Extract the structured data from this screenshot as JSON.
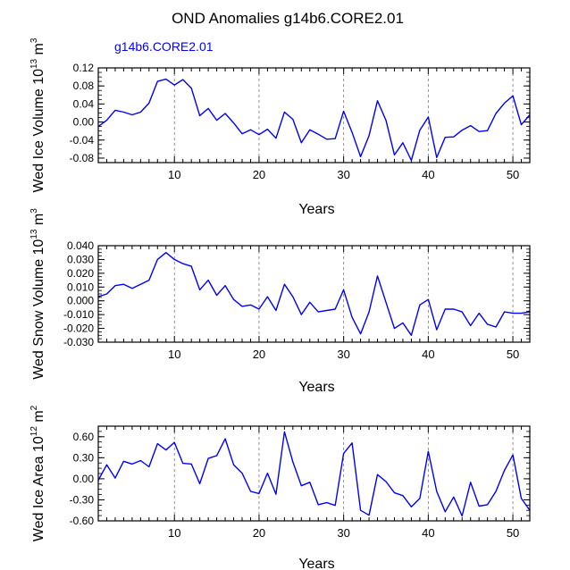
{
  "chart_data": {
    "type": "line",
    "title": "OND Anomalies g14b6.CORE2.01",
    "series_label": "g14b6.CORE2.01",
    "line_color": "#0000ff",
    "x": [
      1,
      2,
      3,
      4,
      5,
      6,
      7,
      8,
      9,
      10,
      11,
      12,
      13,
      14,
      15,
      16,
      17,
      18,
      19,
      20,
      21,
      22,
      23,
      24,
      25,
      26,
      27,
      28,
      29,
      30,
      31,
      32,
      33,
      34,
      35,
      36,
      37,
      38,
      39,
      40,
      41,
      42,
      43,
      44,
      45,
      46,
      47,
      48,
      49,
      50,
      51,
      52
    ],
    "xlim": [
      1,
      52
    ],
    "xticks": [
      10,
      20,
      30,
      40,
      50
    ],
    "xtick_labels": [
      "10",
      "20",
      "30",
      "40",
      "50"
    ],
    "grid_x": [
      10,
      20,
      30,
      40,
      50
    ],
    "panels": [
      {
        "xlabel": "Years",
        "ylabel_main": "Wed Ice Volume 10",
        "ylabel_exp": "13",
        "ylabel_unit": " m",
        "ylabel_unit_exp": "3",
        "ylim": [
          -0.09,
          0.12
        ],
        "yticks": [
          0.12,
          0.08,
          0.04,
          0.0,
          -0.04,
          -0.08
        ],
        "ytick_labels": [
          "0.12",
          "0.08",
          "0.04",
          "0.00",
          "-0.04",
          "-0.08"
        ],
        "values": [
          -0.01,
          0.004,
          0.026,
          0.022,
          0.016,
          0.022,
          0.042,
          0.09,
          0.095,
          0.082,
          0.094,
          0.075,
          0.014,
          0.03,
          0.004,
          0.019,
          -0.002,
          -0.026,
          -0.017,
          -0.028,
          -0.016,
          -0.036,
          0.022,
          0.006,
          -0.046,
          -0.017,
          -0.027,
          -0.038,
          -0.037,
          0.024,
          -0.023,
          -0.077,
          -0.03,
          0.047,
          0.004,
          -0.073,
          -0.046,
          -0.085,
          -0.018,
          0.011,
          -0.079,
          -0.034,
          -0.033,
          -0.018,
          -0.008,
          -0.021,
          -0.019,
          0.019,
          0.042,
          0.058,
          -0.006,
          0.016
        ]
      },
      {
        "xlabel": "Years",
        "ylabel_main": "Wed Snow Volume 10",
        "ylabel_exp": "13",
        "ylabel_unit": " m",
        "ylabel_unit_exp": "3",
        "ylim": [
          -0.03,
          0.04
        ],
        "yticks": [
          0.04,
          0.03,
          0.02,
          0.01,
          0.0,
          -0.01,
          -0.02,
          -0.03
        ],
        "ytick_labels": [
          "0.040",
          "0.030",
          "0.020",
          "0.010",
          "0.000",
          "-0.010",
          "-0.020",
          "-0.030"
        ],
        "values": [
          0.003,
          0.005,
          0.011,
          0.012,
          0.009,
          0.012,
          0.015,
          0.03,
          0.035,
          0.03,
          0.027,
          0.025,
          0.008,
          0.015,
          0.004,
          0.011,
          0.001,
          -0.004,
          -0.003,
          -0.006,
          0.003,
          -0.007,
          0.012,
          0.003,
          -0.01,
          -0.001,
          -0.008,
          -0.007,
          -0.006,
          0.008,
          -0.012,
          -0.024,
          -0.008,
          0.018,
          -0.001,
          -0.02,
          -0.016,
          -0.025,
          -0.003,
          0.001,
          -0.021,
          -0.006,
          -0.006,
          -0.008,
          -0.018,
          -0.009,
          -0.017,
          -0.019,
          -0.008,
          -0.009,
          -0.009,
          -0.008
        ]
      },
      {
        "xlabel": "Years",
        "ylabel_main": "Wed Ice Area 10",
        "ylabel_exp": "12",
        "ylabel_unit": " m",
        "ylabel_unit_exp": "2",
        "ylim": [
          -0.6,
          0.75
        ],
        "yticks": [
          0.6,
          0.3,
          0.0,
          -0.3,
          -0.6
        ],
        "ytick_labels": [
          "0.60",
          "0.30",
          "0.00",
          "-0.30",
          "-0.60"
        ],
        "values": [
          -0.02,
          0.2,
          0.01,
          0.25,
          0.21,
          0.26,
          0.17,
          0.5,
          0.41,
          0.52,
          0.22,
          0.21,
          -0.07,
          0.29,
          0.33,
          0.57,
          0.2,
          0.08,
          -0.18,
          -0.21,
          0.08,
          -0.22,
          0.67,
          0.24,
          -0.1,
          -0.05,
          -0.37,
          -0.34,
          -0.38,
          0.36,
          0.51,
          -0.45,
          -0.52,
          0.06,
          -0.04,
          -0.2,
          -0.24,
          -0.4,
          -0.28,
          0.39,
          -0.18,
          -0.47,
          -0.26,
          -0.53,
          -0.05,
          -0.39,
          -0.37,
          -0.18,
          0.12,
          0.34,
          -0.28,
          -0.45
        ]
      }
    ]
  }
}
